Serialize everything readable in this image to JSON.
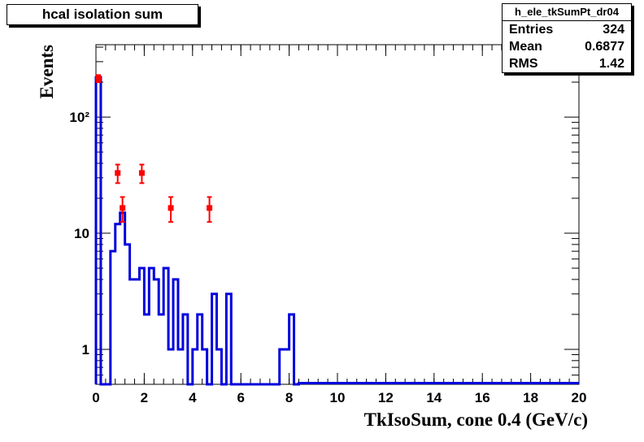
{
  "title": "hcal isolation sum",
  "stats": {
    "name": "h_ele_tkSumPt_dr04",
    "rows": [
      {
        "label": "Entries",
        "value": "324"
      },
      {
        "label": "Mean",
        "value": "0.6877"
      },
      {
        "label": "RMS",
        "value": "1.42"
      }
    ]
  },
  "chart_data": {
    "type": "histogram",
    "xlabel": "TkIsoSum, cone 0.4 (GeV/c)",
    "ylabel": "Events",
    "xlim": [
      0,
      20
    ],
    "ylim": [
      0.5,
      420
    ],
    "yscale": "log",
    "x_ticks": [
      0,
      2,
      4,
      6,
      8,
      10,
      12,
      14,
      16,
      18,
      20
    ],
    "x_tick_labels": [
      "0",
      "2",
      "4",
      "6",
      "8",
      "10",
      "12",
      "14",
      "16",
      "18",
      "20"
    ],
    "y_ticks": [
      1,
      10,
      100
    ],
    "y_tick_labels": [
      "1",
      "10",
      "10²"
    ],
    "series": [
      {
        "color": "#0000dd",
        "style": "step",
        "bin_width": 0.2,
        "bins": [
          {
            "x": 0.0,
            "y": 220
          },
          {
            "x": 0.2,
            "y": 0.5
          },
          {
            "x": 0.4,
            "y": 0.5
          },
          {
            "x": 0.6,
            "y": 7
          },
          {
            "x": 0.8,
            "y": 12
          },
          {
            "x": 1.0,
            "y": 15
          },
          {
            "x": 1.2,
            "y": 8
          },
          {
            "x": 1.4,
            "y": 4
          },
          {
            "x": 1.6,
            "y": 4
          },
          {
            "x": 1.8,
            "y": 5
          },
          {
            "x": 2.0,
            "y": 2
          },
          {
            "x": 2.2,
            "y": 5
          },
          {
            "x": 2.4,
            "y": 4
          },
          {
            "x": 2.6,
            "y": 2
          },
          {
            "x": 2.8,
            "y": 5
          },
          {
            "x": 3.0,
            "y": 1
          },
          {
            "x": 3.2,
            "y": 4
          },
          {
            "x": 3.4,
            "y": 1
          },
          {
            "x": 3.6,
            "y": 2
          },
          {
            "x": 3.8,
            "y": 0.5
          },
          {
            "x": 4.0,
            "y": 1
          },
          {
            "x": 4.2,
            "y": 2
          },
          {
            "x": 4.4,
            "y": 1
          },
          {
            "x": 4.6,
            "y": 0.5
          },
          {
            "x": 4.8,
            "y": 3
          },
          {
            "x": 5.0,
            "y": 1
          },
          {
            "x": 5.2,
            "y": 0.5
          },
          {
            "x": 5.4,
            "y": 3
          },
          {
            "x": 5.6,
            "y": 0.5
          },
          {
            "x": 5.8,
            "y": 0.5
          },
          {
            "x": 6.0,
            "y": 0.5
          },
          {
            "x": 6.2,
            "y": 0.5
          },
          {
            "x": 6.4,
            "y": 0.5
          },
          {
            "x": 6.6,
            "y": 0.5
          },
          {
            "x": 6.8,
            "y": 0.5
          },
          {
            "x": 7.0,
            "y": 0.5
          },
          {
            "x": 7.2,
            "y": 0.5
          },
          {
            "x": 7.4,
            "y": 0.5
          },
          {
            "x": 7.6,
            "y": 1
          },
          {
            "x": 7.8,
            "y": 1
          },
          {
            "x": 8.0,
            "y": 2
          },
          {
            "x": 8.2,
            "y": 0.5
          }
        ]
      },
      {
        "color": "#ff0000",
        "style": "points-with-errors",
        "points": [
          {
            "x": 0.1,
            "y": 215,
            "ylo": 200,
            "yhi": 230
          },
          {
            "x": 0.9,
            "y": 33,
            "ylo": 27,
            "yhi": 39
          },
          {
            "x": 1.1,
            "y": 16.5,
            "ylo": 12.5,
            "yhi": 20.5
          },
          {
            "x": 1.9,
            "y": 33,
            "ylo": 27,
            "yhi": 39
          },
          {
            "x": 3.1,
            "y": 16.5,
            "ylo": 12.5,
            "yhi": 20.5
          },
          {
            "x": 4.7,
            "y": 16.5,
            "ylo": 12.5,
            "yhi": 20.5
          }
        ]
      }
    ]
  }
}
